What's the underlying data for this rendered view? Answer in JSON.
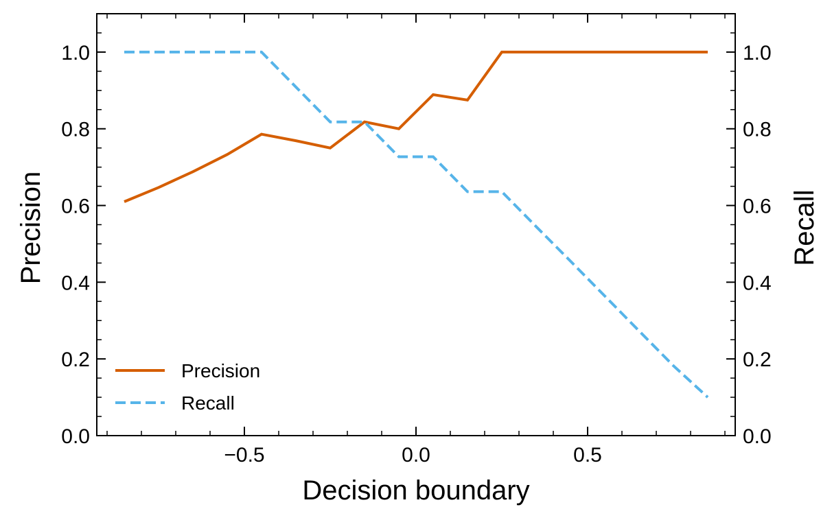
{
  "chart_data": {
    "type": "line",
    "xlabel": "Decision boundary",
    "ylabel": "Precision",
    "y2label": "Recall",
    "xlim": [
      -0.93,
      0.93
    ],
    "ylim": [
      0.0,
      1.1
    ],
    "y2lim": [
      0.0,
      1.1
    ],
    "xticks": [
      -0.5,
      0.0,
      0.5
    ],
    "xtick_labels": [
      "−0.5",
      "0.0",
      "0.5"
    ],
    "yticks": [
      0.0,
      0.2,
      0.4,
      0.6,
      0.8,
      1.0
    ],
    "ytick_labels": [
      "0.0",
      "0.2",
      "0.4",
      "0.6",
      "0.8",
      "1.0"
    ],
    "grid": false,
    "legend_position": "lower-left",
    "series": [
      {
        "name": "Precision",
        "axis": "left",
        "color": "#d55e00",
        "style": "solid",
        "x": [
          -0.85,
          -0.75,
          -0.65,
          -0.55,
          -0.45,
          -0.35,
          -0.25,
          -0.15,
          -0.05,
          0.05,
          0.15,
          0.25,
          0.35,
          0.45,
          0.55,
          0.65,
          0.75,
          0.85
        ],
        "y": [
          0.61,
          0.647,
          0.688,
          0.733,
          0.786,
          0.769,
          0.75,
          0.818,
          0.8,
          0.889,
          0.875,
          1.0,
          1.0,
          1.0,
          1.0,
          1.0,
          1.0,
          1.0
        ]
      },
      {
        "name": "Recall",
        "axis": "right",
        "color": "#56b4e9",
        "style": "dashed",
        "x": [
          -0.85,
          -0.75,
          -0.65,
          -0.55,
          -0.45,
          -0.35,
          -0.25,
          -0.15,
          -0.05,
          0.05,
          0.15,
          0.25,
          0.35,
          0.45,
          0.55,
          0.65,
          0.75,
          0.85
        ],
        "y": [
          1.0,
          1.0,
          1.0,
          1.0,
          1.0,
          0.909,
          0.818,
          0.818,
          0.727,
          0.727,
          0.636,
          0.636,
          0.545,
          0.455,
          0.364,
          0.273,
          0.182,
          0.1
        ]
      }
    ]
  }
}
